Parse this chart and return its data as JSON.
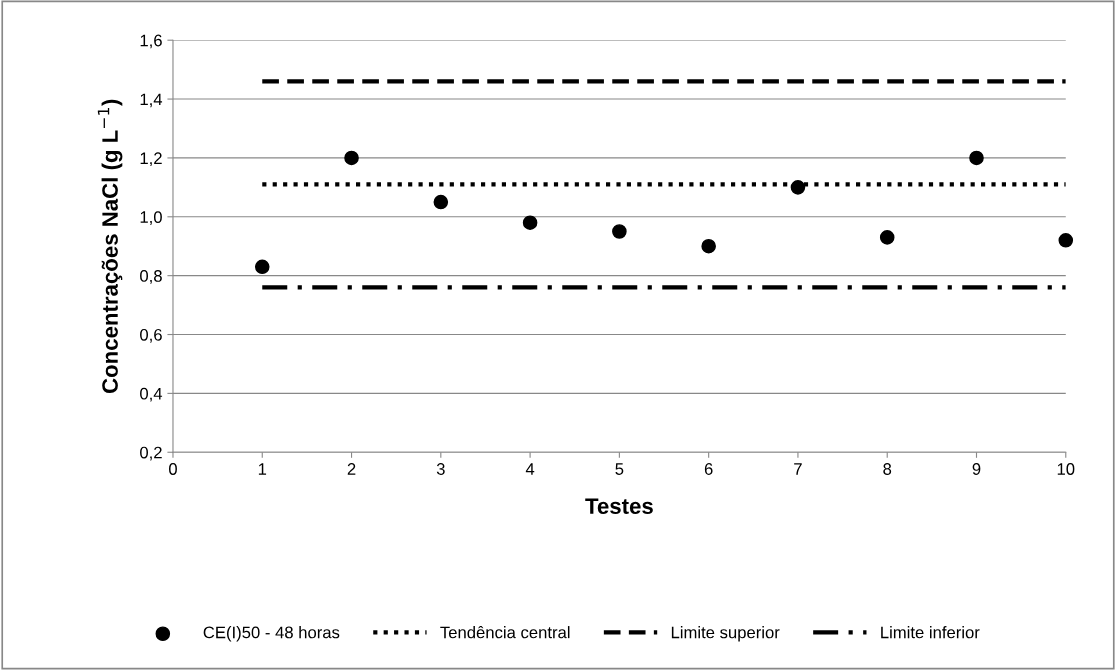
{
  "chart_data": {
    "type": "scatter",
    "xlabel": "Testes",
    "ylabel": "Concentrações NaCl (g L$^{−1}$)",
    "xlim": [
      0,
      10
    ],
    "xticks": [
      0,
      1,
      2,
      3,
      4,
      5,
      6,
      7,
      8,
      9,
      10
    ],
    "ylim": [
      0.2,
      1.6
    ],
    "yticks": [
      {
        "value": 0.2,
        "label": "0,2"
      },
      {
        "value": 0.4,
        "label": "0,4"
      },
      {
        "value": 0.6,
        "label": "0,6"
      },
      {
        "value": 0.8,
        "label": "0,8"
      },
      {
        "value": 1.0,
        "label": "1,0"
      },
      {
        "value": 1.2,
        "label": "1,2"
      },
      {
        "value": 1.4,
        "label": "1,4"
      },
      {
        "value": 1.6,
        "label": "1,6"
      }
    ],
    "grid": "y",
    "legend": "bottom",
    "series": [
      {
        "name": "CE(I)50 - 48 horas",
        "marker": "circle",
        "color": "#000000",
        "x": [
          1,
          2,
          3,
          4,
          5,
          6,
          7,
          8,
          9,
          10
        ],
        "values": [
          0.83,
          1.2,
          1.05,
          0.98,
          0.95,
          0.9,
          1.1,
          0.93,
          1.2,
          0.92
        ]
      },
      {
        "name": "Tendência central",
        "type": "line",
        "color": "#000000",
        "line_style": "dotted",
        "x": [
          1,
          10
        ],
        "values": [
          1.11,
          1.11
        ]
      },
      {
        "name": "Limite superior",
        "type": "line",
        "color": "#000000",
        "line_style": "dashed",
        "x": [
          1,
          10
        ],
        "values": [
          1.46,
          1.46
        ]
      },
      {
        "name": "Limite inferior",
        "type": "line",
        "color": "#000000",
        "line_style": "dashdot",
        "x": [
          1,
          10
        ],
        "values": [
          0.76,
          0.76
        ]
      }
    ]
  }
}
